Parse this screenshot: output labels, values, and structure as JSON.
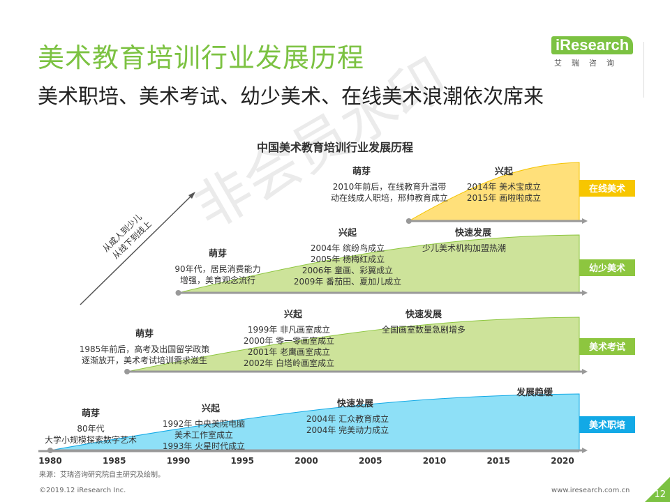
{
  "header": {
    "title": "美术教育培训行业发展历程",
    "subtitle": "美术职培、美术考试、幼少美术、在线美术浪潮依次席来"
  },
  "logo": {
    "brand": "iResearch",
    "cn": "艾瑞咨询"
  },
  "watermark": "非会员水印",
  "chart_title": "中国美术教育培训行业发展历程",
  "arrow_label": [
    "从成人到少儿",
    "从线下到线上"
  ],
  "colors": {
    "accent": "#7cc242",
    "online": "#f7c600",
    "kids": "#8dc63f",
    "exam": "#8dc63f",
    "job": "#12a9e6"
  },
  "chart_data": {
    "type": "area",
    "x_ticks": [
      "1980",
      "1985",
      "1990",
      "1995",
      "2000",
      "2005",
      "2010",
      "2015",
      "2020"
    ],
    "xlim": [
      1980,
      2020
    ],
    "tracks": [
      {
        "label": "在线美术",
        "start_year": 2008,
        "phases": [
          {
            "title": "萌芽",
            "lines": [
              "2010年前后，在线教育升温带",
              "动在线成人职培，邢帅教育成立"
            ]
          },
          {
            "title": "兴起",
            "lines": [
              "2014年 美术宝成立",
              "2015年 画啦啦成立"
            ]
          }
        ]
      },
      {
        "label": "幼少美术",
        "start_year": 1990,
        "phases": [
          {
            "title": "萌芽",
            "lines": [
              "90年代，居民消费能力",
              "增强，美育观念流行"
            ]
          },
          {
            "title": "兴起",
            "lines": [
              "2004年 缤纷鸟成立",
              "2005年 杨梅红成立",
              "2006年 童画、彩翼成立",
              "2009年 番茄田、夏加儿成立"
            ]
          },
          {
            "title": "快速发展",
            "lines": [
              "少儿美术机构加盟热潮"
            ]
          }
        ]
      },
      {
        "label": "美术考试",
        "start_year": 1986,
        "phases": [
          {
            "title": "萌芽",
            "lines": [
              "1985年前后，高考及出国留学政策",
              "逐渐放开，美术考试培训需求滋生"
            ]
          },
          {
            "title": "兴起",
            "lines": [
              "1999年 非凡画室成立",
              "2000年 零一零画室成立",
              "2001年 老鹰画室成立",
              "2002年 白塔岭画室成立"
            ]
          },
          {
            "title": "快速发展",
            "lines": [
              "全国画室数量急剧增多"
            ]
          }
        ]
      },
      {
        "label": "美术职培",
        "start_year": 1980,
        "phases": [
          {
            "title": "萌芽",
            "lines": [
              "80年代",
              "大学小规模探索数字艺术"
            ]
          },
          {
            "title": "兴起",
            "lines": [
              "1992年 中央美院电脑",
              "美术工作室成立",
              "1993年 火星时代成立"
            ]
          },
          {
            "title": "快速发展",
            "lines": [
              "2004年 汇众教育成立",
              "2004年 完美动力成立"
            ]
          },
          {
            "title": "发展趋缓",
            "lines": []
          }
        ]
      }
    ]
  },
  "footer": {
    "source": "来源：艾瑞咨询研究院自主研究及绘制。",
    "copyright": "©2019.12 iResearch Inc.",
    "url": "www.iresearch.com.cn",
    "page": "12"
  }
}
